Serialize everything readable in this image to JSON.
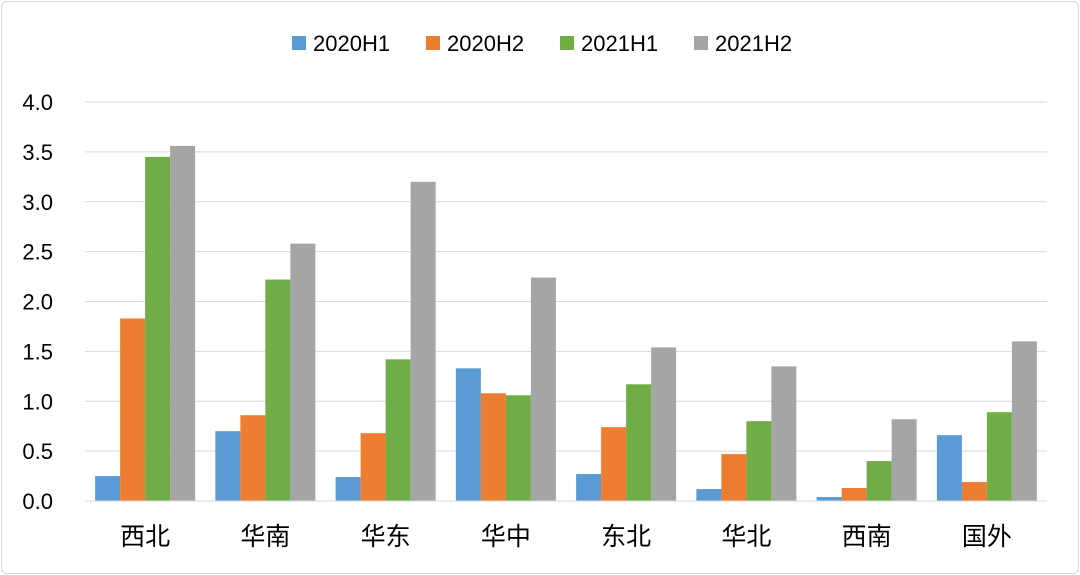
{
  "chart_data": {
    "type": "bar",
    "categories": [
      "西北",
      "华南",
      "华东",
      "华中",
      "东北",
      "华北",
      "西南",
      "国外"
    ],
    "series": [
      {
        "name": "2020H1",
        "color": "#5b9bd5",
        "values": [
          0.25,
          0.7,
          0.24,
          1.33,
          0.27,
          0.12,
          0.04,
          0.66
        ]
      },
      {
        "name": "2020H2",
        "color": "#ed7d31",
        "values": [
          1.83,
          0.86,
          0.68,
          1.08,
          0.74,
          0.47,
          0.13,
          0.19
        ]
      },
      {
        "name": "2021H1",
        "color": "#70ad47",
        "values": [
          3.45,
          2.22,
          1.42,
          1.06,
          1.17,
          0.8,
          0.4,
          0.89
        ]
      },
      {
        "name": "2021H2",
        "color": "#a5a5a5",
        "values": [
          3.56,
          2.58,
          3.2,
          2.24,
          1.54,
          1.35,
          0.82,
          1.6
        ]
      }
    ],
    "y_ticks": [
      "0.0",
      "0.5",
      "1.0",
      "1.5",
      "2.0",
      "2.5",
      "3.0",
      "3.5",
      "4.0"
    ],
    "ylim": [
      0,
      4
    ],
    "grid": true,
    "legend_position": "top-center"
  }
}
